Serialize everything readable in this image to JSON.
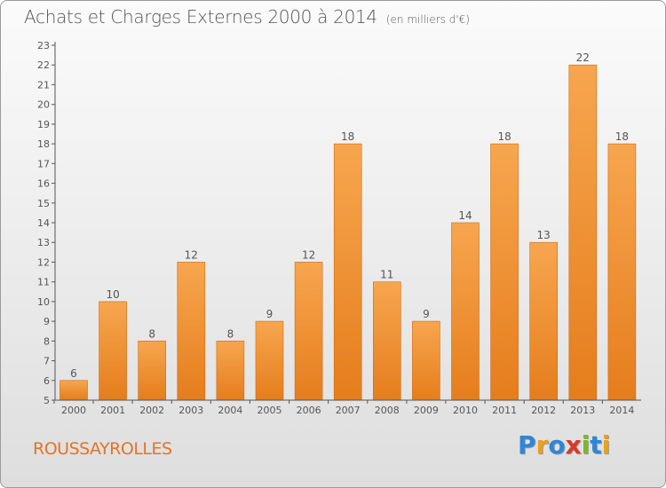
{
  "header": {
    "title": "Achats et Charges Externes 2000 à 2014",
    "subtitle": "(en milliers d'€)"
  },
  "footer": {
    "commune": "ROUSSAYROLLES",
    "logo_text": "Proxiti"
  },
  "colors": {
    "bar_top": "#f7a64f",
    "bar_bottom": "#e57d1c",
    "axis": "#555555",
    "commune_text": "#e0742a",
    "logo_letters": [
      "#2e86d8",
      "#e8a21c",
      "#2e86d8",
      "#d83a2a",
      "#7ab82a",
      "#2e86d8",
      "#e8a21c"
    ]
  },
  "chart_data": {
    "type": "bar",
    "categories": [
      "2000",
      "2001",
      "2002",
      "2003",
      "2004",
      "2005",
      "2006",
      "2007",
      "2008",
      "2009",
      "2010",
      "2011",
      "2012",
      "2013",
      "2014"
    ],
    "values": [
      6,
      10,
      8,
      12,
      8,
      9,
      12,
      18,
      11,
      9,
      14,
      18,
      13,
      22,
      18
    ],
    "title": "Achats et Charges Externes 2000 à 2014",
    "subtitle": "(en milliers d'€)",
    "ylim": [
      5,
      23
    ],
    "yticks": [
      5,
      6,
      7,
      8,
      9,
      10,
      11,
      12,
      13,
      14,
      15,
      16,
      17,
      18,
      19,
      20,
      21,
      22,
      23
    ],
    "grid": false,
    "data_labels": true
  }
}
